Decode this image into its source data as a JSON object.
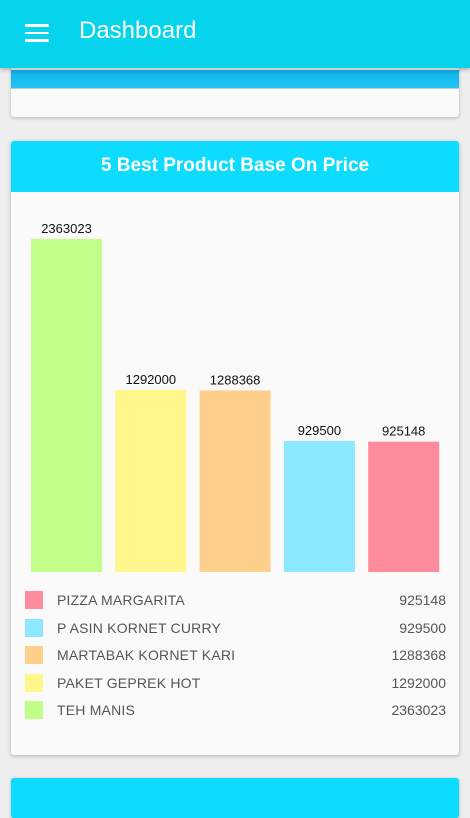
{
  "appbar": {
    "title": "Dashboard",
    "menu_icon": "hamburger-menu-icon"
  },
  "card": {
    "title": "5 Best Product Base On Price"
  },
  "colors": {
    "appbar": "#06d4ec",
    "card_header": "#0ddcff",
    "background": "#eeeeee"
  },
  "chart_data": {
    "type": "bar",
    "title": "5 Best Product Base On Price",
    "categories": [
      "TEH MANIS",
      "PAKET GEPREK HOT",
      "MARTABAK KORNET KARI",
      "P ASIN KORNET CURRY",
      "PIZZA MARGARITA"
    ],
    "values": [
      2363023,
      1292000,
      1288368,
      929500,
      925148
    ],
    "colors": [
      "#c2ff8a",
      "#fff68c",
      "#ffd08c",
      "#8ce9ff",
      "#ff8c9c"
    ],
    "ylim": [
      0,
      2363023
    ],
    "legend_position": "bottom",
    "xlabel": "",
    "ylabel": ""
  },
  "legend": [
    {
      "name": "PIZZA MARGARITA",
      "value": "925148",
      "color": "#ff8c9c"
    },
    {
      "name": "P ASIN KORNET CURRY",
      "value": "929500",
      "color": "#8ce9ff"
    },
    {
      "name": "MARTABAK KORNET KARI",
      "value": "1288368",
      "color": "#ffd08c"
    },
    {
      "name": "PAKET GEPREK HOT",
      "value": "1292000",
      "color": "#fff68c"
    },
    {
      "name": "TEH MANIS",
      "value": "2363023",
      "color": "#c2ff8a"
    }
  ]
}
